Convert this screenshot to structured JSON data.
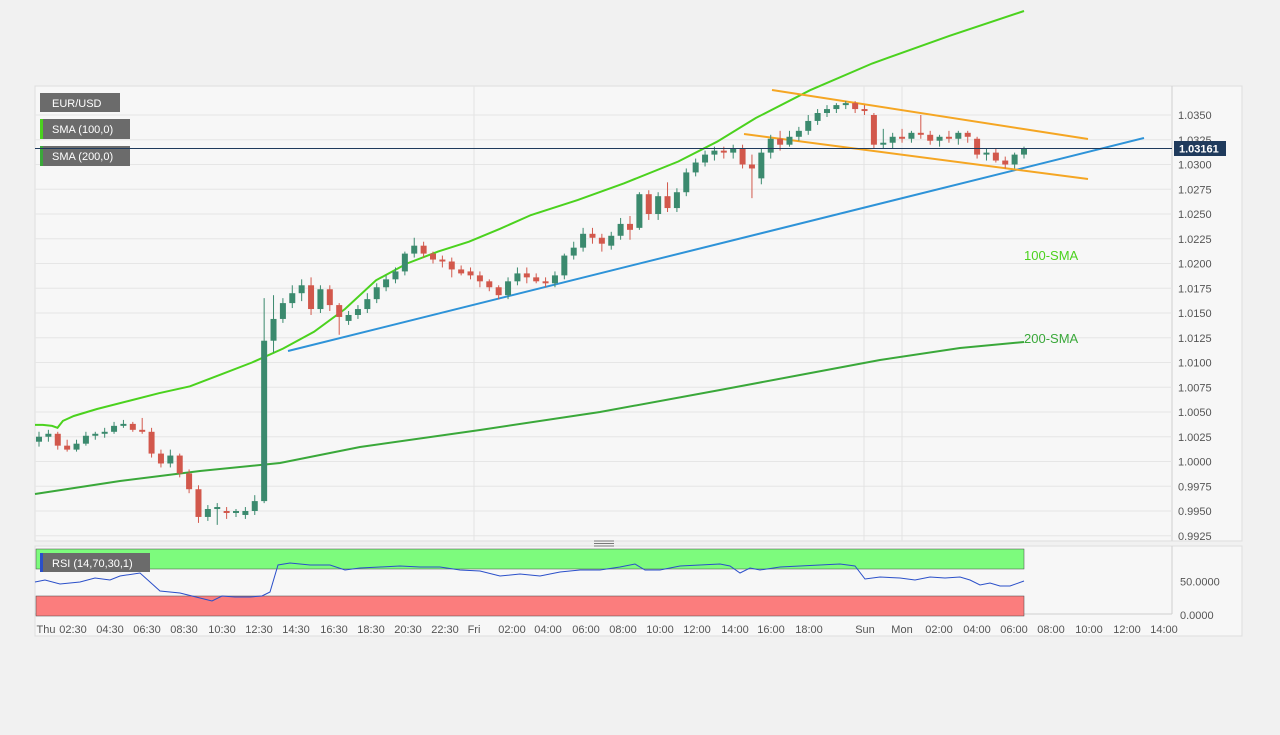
{
  "chart_data": {
    "type": "candlestick",
    "symbol": "EUR/USD",
    "last_price_label": "1.03161",
    "last_price": 1.03161,
    "indicators": [
      "SMA (100,0)",
      "SMA (200,0)"
    ],
    "price_axis": {
      "ylim": [
        0.9915,
        1.0375
      ],
      "ticks": [
        "1.0350",
        "1.0325",
        "1.0300",
        "1.0275",
        "1.0250",
        "1.0225",
        "1.0200",
        "1.0175",
        "1.0150",
        "1.0125",
        "1.0100",
        "1.0075",
        "1.0050",
        "1.0025",
        "1.0000",
        "0.9975",
        "0.9950",
        "0.9925"
      ]
    },
    "time_axis": {
      "ticks": [
        "Thu",
        "02:30",
        "04:30",
        "06:30",
        "08:30",
        "10:30",
        "12:30",
        "14:30",
        "16:30",
        "18:30",
        "20:30",
        "22:30",
        "Fri",
        "02:00",
        "04:00",
        "06:00",
        "08:00",
        "10:00",
        "12:00",
        "14:00",
        "16:00",
        "18:00",
        "Sun",
        "Mon",
        "02:00",
        "04:00",
        "06:00",
        "08:00",
        "10:00",
        "12:00",
        "14:00"
      ]
    },
    "candles": [
      {
        "o": 1.002,
        "h": 1.003,
        "l": 1.0015,
        "c": 1.0025
      },
      {
        "o": 1.0025,
        "h": 1.0032,
        "l": 1.002,
        "c": 1.0028
      },
      {
        "o": 1.0028,
        "h": 1.003,
        "l": 1.0012,
        "c": 1.0016
      },
      {
        "o": 1.0016,
        "h": 1.0022,
        "l": 1.001,
        "c": 1.0012
      },
      {
        "o": 1.0012,
        "h": 1.0022,
        "l": 1.001,
        "c": 1.0018
      },
      {
        "o": 1.0018,
        "h": 1.003,
        "l": 1.0016,
        "c": 1.0026
      },
      {
        "o": 1.0026,
        "h": 1.003,
        "l": 1.0022,
        "c": 1.0028
      },
      {
        "o": 1.0028,
        "h": 1.0034,
        "l": 1.0024,
        "c": 1.003
      },
      {
        "o": 1.003,
        "h": 1.004,
        "l": 1.0028,
        "c": 1.0036
      },
      {
        "o": 1.0036,
        "h": 1.0042,
        "l": 1.0034,
        "c": 1.0038
      },
      {
        "o": 1.0038,
        "h": 1.004,
        "l": 1.003,
        "c": 1.0032
      },
      {
        "o": 1.0032,
        "h": 1.0044,
        "l": 1.0028,
        "c": 1.003
      },
      {
        "o": 1.003,
        "h": 1.0034,
        "l": 1.0004,
        "c": 1.0008
      },
      {
        "o": 1.0008,
        "h": 1.0012,
        "l": 0.9994,
        "c": 0.9998
      },
      {
        "o": 0.9998,
        "h": 1.0012,
        "l": 0.9994,
        "c": 1.0006
      },
      {
        "o": 1.0006,
        "h": 1.0008,
        "l": 0.9984,
        "c": 0.9988
      },
      {
        "o": 0.9988,
        "h": 0.9992,
        "l": 0.9968,
        "c": 0.9972
      },
      {
        "o": 0.9972,
        "h": 0.9976,
        "l": 0.9938,
        "c": 0.9944
      },
      {
        "o": 0.9944,
        "h": 0.9956,
        "l": 0.994,
        "c": 0.9952
      },
      {
        "o": 0.9952,
        "h": 0.9958,
        "l": 0.9936,
        "c": 0.9954
      },
      {
        "o": 0.995,
        "h": 0.9954,
        "l": 0.9942,
        "c": 0.9948
      },
      {
        "o": 0.9948,
        "h": 0.9952,
        "l": 0.9944,
        "c": 0.995
      },
      {
        "o": 0.9946,
        "h": 0.9954,
        "l": 0.9942,
        "c": 0.995
      },
      {
        "o": 0.995,
        "h": 0.9966,
        "l": 0.9946,
        "c": 0.996
      },
      {
        "o": 0.996,
        "h": 1.0165,
        "l": 0.9958,
        "c": 1.0122
      },
      {
        "o": 1.0122,
        "h": 1.0168,
        "l": 1.011,
        "c": 1.0144
      },
      {
        "o": 1.0144,
        "h": 1.0165,
        "l": 1.014,
        "c": 1.016
      },
      {
        "o": 1.016,
        "h": 1.0178,
        "l": 1.0155,
        "c": 1.017
      },
      {
        "o": 1.017,
        "h": 1.0184,
        "l": 1.0162,
        "c": 1.0178
      },
      {
        "o": 1.0178,
        "h": 1.0186,
        "l": 1.0148,
        "c": 1.0154
      },
      {
        "o": 1.0154,
        "h": 1.0178,
        "l": 1.015,
        "c": 1.0174
      },
      {
        "o": 1.0174,
        "h": 1.0178,
        "l": 1.0152,
        "c": 1.0158
      },
      {
        "o": 1.0158,
        "h": 1.016,
        "l": 1.0128,
        "c": 1.0146
      },
      {
        "o": 1.0142,
        "h": 1.0152,
        "l": 1.0138,
        "c": 1.0148
      },
      {
        "o": 1.0148,
        "h": 1.0158,
        "l": 1.0144,
        "c": 1.0154
      },
      {
        "o": 1.0154,
        "h": 1.017,
        "l": 1.015,
        "c": 1.0164
      },
      {
        "o": 1.0164,
        "h": 1.018,
        "l": 1.016,
        "c": 1.0176
      },
      {
        "o": 1.0176,
        "h": 1.0188,
        "l": 1.0172,
        "c": 1.0184
      },
      {
        "o": 1.0184,
        "h": 1.0196,
        "l": 1.018,
        "c": 1.0192
      },
      {
        "o": 1.0192,
        "h": 1.0212,
        "l": 1.0188,
        "c": 1.021
      },
      {
        "o": 1.021,
        "h": 1.0226,
        "l": 1.0206,
        "c": 1.0218
      },
      {
        "o": 1.0218,
        "h": 1.0222,
        "l": 1.0206,
        "c": 1.021
      },
      {
        "o": 1.021,
        "h": 1.0212,
        "l": 1.02,
        "c": 1.0204
      },
      {
        "o": 1.0204,
        "h": 1.0208,
        "l": 1.0196,
        "c": 1.0202
      },
      {
        "o": 1.0202,
        "h": 1.0206,
        "l": 1.0186,
        "c": 1.0194
      },
      {
        "o": 1.0194,
        "h": 1.0198,
        "l": 1.0188,
        "c": 1.019
      },
      {
        "o": 1.0192,
        "h": 1.0196,
        "l": 1.0184,
        "c": 1.0188
      },
      {
        "o": 1.0188,
        "h": 1.0192,
        "l": 1.0176,
        "c": 1.0182
      },
      {
        "o": 1.0182,
        "h": 1.0184,
        "l": 1.0172,
        "c": 1.0176
      },
      {
        "o": 1.0176,
        "h": 1.0178,
        "l": 1.0164,
        "c": 1.0168
      },
      {
        "o": 1.0168,
        "h": 1.0186,
        "l": 1.0164,
        "c": 1.0182
      },
      {
        "o": 1.0182,
        "h": 1.0196,
        "l": 1.0178,
        "c": 1.019
      },
      {
        "o": 1.019,
        "h": 1.0196,
        "l": 1.018,
        "c": 1.0186
      },
      {
        "o": 1.0186,
        "h": 1.019,
        "l": 1.018,
        "c": 1.0182
      },
      {
        "o": 1.0182,
        "h": 1.0186,
        "l": 1.0176,
        "c": 1.018
      },
      {
        "o": 1.018,
        "h": 1.0192,
        "l": 1.0176,
        "c": 1.0188
      },
      {
        "o": 1.0188,
        "h": 1.021,
        "l": 1.0184,
        "c": 1.0208
      },
      {
        "o": 1.0208,
        "h": 1.0222,
        "l": 1.0204,
        "c": 1.0216
      },
      {
        "o": 1.0216,
        "h": 1.0236,
        "l": 1.0212,
        "c": 1.023
      },
      {
        "o": 1.023,
        "h": 1.0236,
        "l": 1.022,
        "c": 1.0226
      },
      {
        "o": 1.0226,
        "h": 1.023,
        "l": 1.0212,
        "c": 1.022
      },
      {
        "o": 1.0218,
        "h": 1.0232,
        "l": 1.0214,
        "c": 1.0228
      },
      {
        "o": 1.0228,
        "h": 1.0246,
        "l": 1.0224,
        "c": 1.024
      },
      {
        "o": 1.024,
        "h": 1.0248,
        "l": 1.0224,
        "c": 1.0234
      },
      {
        "o": 1.0236,
        "h": 1.0272,
        "l": 1.0234,
        "c": 1.027
      },
      {
        "o": 1.027,
        "h": 1.0274,
        "l": 1.0244,
        "c": 1.025
      },
      {
        "o": 1.025,
        "h": 1.0272,
        "l": 1.0244,
        "c": 1.0268
      },
      {
        "o": 1.0268,
        "h": 1.0282,
        "l": 1.0252,
        "c": 1.0256
      },
      {
        "o": 1.0256,
        "h": 1.0276,
        "l": 1.0252,
        "c": 1.0272
      },
      {
        "o": 1.0272,
        "h": 1.0296,
        "l": 1.0268,
        "c": 1.0292
      },
      {
        "o": 1.0292,
        "h": 1.0306,
        "l": 1.0288,
        "c": 1.0302
      },
      {
        "o": 1.0302,
        "h": 1.0314,
        "l": 1.0298,
        "c": 1.031
      },
      {
        "o": 1.031,
        "h": 1.0318,
        "l": 1.0304,
        "c": 1.0314
      },
      {
        "o": 1.0314,
        "h": 1.0318,
        "l": 1.0306,
        "c": 1.0312
      },
      {
        "o": 1.0312,
        "h": 1.032,
        "l": 1.0306,
        "c": 1.0316
      },
      {
        "o": 1.0316,
        "h": 1.032,
        "l": 1.0296,
        "c": 1.03
      },
      {
        "o": 1.03,
        "h": 1.031,
        "l": 1.0266,
        "c": 1.0296
      },
      {
        "o": 1.0286,
        "h": 1.0316,
        "l": 1.028,
        "c": 1.0312
      },
      {
        "o": 1.0312,
        "h": 1.033,
        "l": 1.0306,
        "c": 1.0326
      },
      {
        "o": 1.0326,
        "h": 1.0334,
        "l": 1.0314,
        "c": 1.032
      },
      {
        "o": 1.032,
        "h": 1.0334,
        "l": 1.0318,
        "c": 1.0328
      },
      {
        "o": 1.0328,
        "h": 1.0338,
        "l": 1.0324,
        "c": 1.0334
      },
      {
        "o": 1.0334,
        "h": 1.035,
        "l": 1.033,
        "c": 1.0344
      },
      {
        "o": 1.0344,
        "h": 1.0356,
        "l": 1.034,
        "c": 1.0352
      },
      {
        "o": 1.0352,
        "h": 1.036,
        "l": 1.0348,
        "c": 1.0356
      },
      {
        "o": 1.0356,
        "h": 1.0362,
        "l": 1.0352,
        "c": 1.036
      },
      {
        "o": 1.036,
        "h": 1.0364,
        "l": 1.0356,
        "c": 1.0362
      },
      {
        "o": 1.0362,
        "h": 1.0364,
        "l": 1.0352,
        "c": 1.0356
      },
      {
        "o": 1.0356,
        "h": 1.036,
        "l": 1.035,
        "c": 1.0354
      },
      {
        "o": 1.035,
        "h": 1.0352,
        "l": 1.0316,
        "c": 1.032
      },
      {
        "o": 1.032,
        "h": 1.0336,
        "l": 1.0316,
        "c": 1.0322
      },
      {
        "o": 1.0322,
        "h": 1.0332,
        "l": 1.0316,
        "c": 1.0328
      },
      {
        "o": 1.0328,
        "h": 1.0336,
        "l": 1.0322,
        "c": 1.0326
      },
      {
        "o": 1.0326,
        "h": 1.0334,
        "l": 1.0322,
        "c": 1.0332
      },
      {
        "o": 1.0332,
        "h": 1.035,
        "l": 1.0326,
        "c": 1.033
      },
      {
        "o": 1.033,
        "h": 1.0334,
        "l": 1.032,
        "c": 1.0324
      },
      {
        "o": 1.0324,
        "h": 1.033,
        "l": 1.0318,
        "c": 1.0328
      },
      {
        "o": 1.0328,
        "h": 1.0334,
        "l": 1.0322,
        "c": 1.0326
      },
      {
        "o": 1.0326,
        "h": 1.0334,
        "l": 1.032,
        "c": 1.0332
      },
      {
        "o": 1.0332,
        "h": 1.0334,
        "l": 1.0322,
        "c": 1.0328
      },
      {
        "o": 1.0326,
        "h": 1.0328,
        "l": 1.0306,
        "c": 1.031
      },
      {
        "o": 1.031,
        "h": 1.0316,
        "l": 1.0304,
        "c": 1.0312
      },
      {
        "o": 1.0312,
        "h": 1.0316,
        "l": 1.0302,
        "c": 1.0304
      },
      {
        "o": 1.0304,
        "h": 1.0308,
        "l": 1.0296,
        "c": 1.03
      },
      {
        "o": 1.03,
        "h": 1.0312,
        "l": 1.0296,
        "c": 1.031
      },
      {
        "o": 1.031,
        "h": 1.0318,
        "l": 1.0306,
        "c": 1.0316
      }
    ],
    "sma100": {
      "label": "100-SMA",
      "color": "#4bd21e",
      "points": [
        [
          0,
          1.0037
        ],
        [
          10,
          1.0037
        ],
        [
          22,
          1.0036
        ],
        [
          29,
          1.0034
        ],
        [
          36,
          1.0041
        ],
        [
          50,
          1.0046
        ],
        [
          80,
          1.0053
        ],
        [
          120,
          1.0061
        ],
        [
          160,
          1.0069
        ],
        [
          200,
          1.0076
        ],
        [
          240,
          1.0088
        ],
        [
          280,
          1.01
        ],
        [
          320,
          1.0114
        ],
        [
          360,
          1.0131
        ],
        [
          400,
          1.0154
        ],
        [
          440,
          1.0183
        ],
        [
          480,
          1.02
        ],
        [
          520,
          1.0212
        ],
        [
          560,
          1.0222
        ],
        [
          600,
          1.0235
        ],
        [
          640,
          1.0249
        ],
        [
          700,
          1.0264
        ],
        [
          760,
          1.0281
        ],
        [
          830,
          1.0303
        ],
        [
          880,
          1.0323
        ],
        [
          930,
          1.0347
        ],
        [
          1000,
          1.0375
        ],
        [
          1080,
          1.0402
        ],
        [
          1180,
          1.043
        ],
        [
          1276,
          1.0455
        ]
      ],
      "note_scale": "x = pixel-free step index of 1276 total time units"
    },
    "sma200": {
      "label": "200-SMA",
      "color": "#3aa83a"
    },
    "rsi": {
      "label": "RSI (14,70,30,1)",
      "ticks": [
        "50.0000",
        "0.0000"
      ],
      "overbought": 70,
      "oversold": 30
    },
    "colors": {
      "up": "#3b8a6e",
      "down": "#d2584c",
      "channel": "#f5a623",
      "trendline": "#2e93d8",
      "rsi_line": "#2a4fc9",
      "rsi_high": "#7dfb7d",
      "rsi_low": "#fb7d7d",
      "price_tag": "#1f3a5c"
    }
  }
}
